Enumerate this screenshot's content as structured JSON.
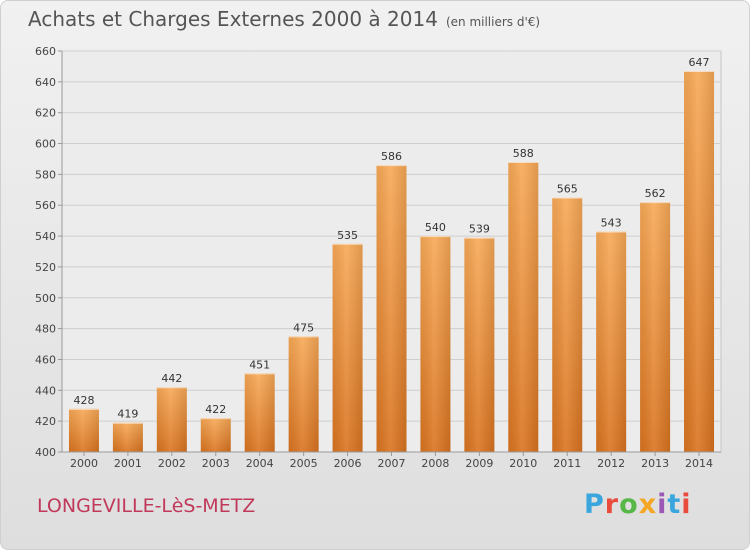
{
  "header": {
    "title": "Achats et Charges Externes 2000 à 2014",
    "unit": "(en milliers d'€)"
  },
  "footer": {
    "commune": "LONGEVILLE-LèS-METZ",
    "brand": "Proxiti",
    "brand_colors": [
      "#3aa6dd",
      "#e94b3c",
      "#57b847",
      "#f5a623",
      "#9b59b6",
      "#3aa6dd",
      "#e94b3c"
    ]
  },
  "chart_data": {
    "type": "bar",
    "title": "Achats et Charges Externes 2000 à 2014",
    "subtitle": "(en milliers d'€)",
    "xlabel": "",
    "ylabel": "",
    "categories": [
      "2000",
      "2001",
      "2002",
      "2003",
      "2004",
      "2005",
      "2006",
      "2007",
      "2008",
      "2009",
      "2010",
      "2011",
      "2012",
      "2013",
      "2014"
    ],
    "values": [
      428,
      419,
      442,
      422,
      451,
      475,
      535,
      586,
      540,
      539,
      588,
      565,
      543,
      562,
      647
    ],
    "ylim": [
      400,
      660
    ],
    "yticks": [
      400,
      420,
      440,
      460,
      480,
      500,
      520,
      540,
      560,
      580,
      600,
      620,
      640,
      660
    ],
    "grid": true,
    "legend": "none",
    "bar_color_top": "#f7a957",
    "bar_color_bottom": "#d9731f"
  }
}
